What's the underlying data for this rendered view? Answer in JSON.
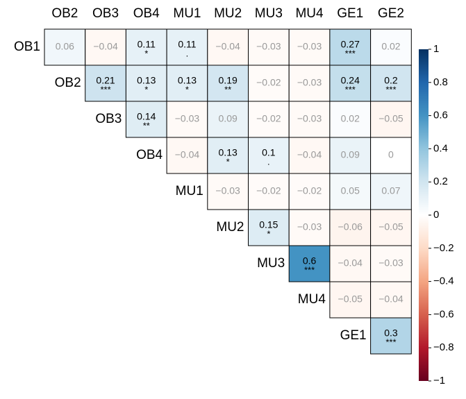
{
  "chart_data": {
    "type": "heatmap",
    "columns": [
      "OB2",
      "OB3",
      "OB4",
      "MU1",
      "MU2",
      "MU3",
      "MU4",
      "GE1",
      "GE2"
    ],
    "rows": [
      "OB1",
      "OB2",
      "OB3",
      "OB4",
      "MU1",
      "MU2",
      "MU3",
      "MU4",
      "GE1"
    ],
    "values": [
      [
        0.06,
        -0.04,
        0.11,
        0.11,
        -0.04,
        -0.03,
        -0.03,
        0.27,
        0.02
      ],
      [
        null,
        0.21,
        0.13,
        0.13,
        0.19,
        -0.02,
        -0.03,
        0.24,
        0.2
      ],
      [
        null,
        null,
        0.14,
        -0.03,
        0.09,
        -0.02,
        -0.03,
        0.02,
        -0.05
      ],
      [
        null,
        null,
        null,
        -0.04,
        0.13,
        0.1,
        -0.04,
        0.09,
        0
      ],
      [
        null,
        null,
        null,
        null,
        -0.03,
        -0.02,
        -0.02,
        0.05,
        0.07
      ],
      [
        null,
        null,
        null,
        null,
        null,
        0.15,
        -0.03,
        -0.06,
        -0.05
      ],
      [
        null,
        null,
        null,
        null,
        null,
        null,
        0.6,
        -0.04,
        -0.03
      ],
      [
        null,
        null,
        null,
        null,
        null,
        null,
        null,
        -0.05,
        -0.04
      ],
      [
        null,
        null,
        null,
        null,
        null,
        null,
        null,
        null,
        0.3
      ]
    ],
    "value_labels": [
      [
        "0.06",
        "−0.04",
        "0.11",
        "0.11",
        "−0.04",
        "−0.03",
        "−0.03",
        "0.27",
        "0.02"
      ],
      [
        null,
        "0.21",
        "0.13",
        "0.13",
        "0.19",
        "−0.02",
        "−0.03",
        "0.24",
        "0.2"
      ],
      [
        null,
        null,
        "0.14",
        "−0.03",
        "0.09",
        "−0.02",
        "−0.03",
        "0.02",
        "−0.05"
      ],
      [
        null,
        null,
        null,
        "−0.04",
        "0.13",
        "0.1",
        "−0.04",
        "0.09",
        "0"
      ],
      [
        null,
        null,
        null,
        null,
        "−0.03",
        "−0.02",
        "−0.02",
        "0.05",
        "0.07"
      ],
      [
        null,
        null,
        null,
        null,
        null,
        "0.15",
        "−0.03",
        "−0.06",
        "−0.05"
      ],
      [
        null,
        null,
        null,
        null,
        null,
        null,
        "0.6",
        "−0.04",
        "−0.03"
      ],
      [
        null,
        null,
        null,
        null,
        null,
        null,
        null,
        "−0.05",
        "−0.04"
      ],
      [
        null,
        null,
        null,
        null,
        null,
        null,
        null,
        null,
        "0.3"
      ]
    ],
    "significance": [
      [
        null,
        null,
        "*",
        ".",
        null,
        null,
        null,
        "***",
        null
      ],
      [
        null,
        "***",
        "*",
        "*",
        "**",
        null,
        null,
        "***",
        "***"
      ],
      [
        null,
        null,
        "**",
        null,
        null,
        null,
        null,
        null,
        null
      ],
      [
        null,
        null,
        null,
        null,
        "*",
        ".",
        null,
        null,
        null
      ],
      [
        null,
        null,
        null,
        null,
        null,
        null,
        null,
        null,
        null
      ],
      [
        null,
        null,
        null,
        null,
        null,
        "*",
        null,
        null,
        null
      ],
      [
        null,
        null,
        null,
        null,
        null,
        null,
        "***",
        null,
        null
      ],
      [
        null,
        null,
        null,
        null,
        null,
        null,
        null,
        null,
        null
      ],
      [
        null,
        null,
        null,
        null,
        null,
        null,
        null,
        null,
        "***"
      ]
    ],
    "zlim": [
      -1,
      1
    ],
    "zticks": [
      1,
      0.8,
      0.6,
      0.4,
      0.2,
      0,
      {
        "value": -0.2,
        "label": "−0.2"
      },
      {
        "value": -0.4,
        "label": "−0.4"
      },
      {
        "value": -0.6,
        "label": "−0.6"
      },
      {
        "value": -0.8,
        "label": "−0.8"
      },
      {
        "value": -1,
        "label": "−1"
      }
    ],
    "colors": [
      "#67001f",
      "#b2182b",
      "#d6604d",
      "#f4a582",
      "#fddbc7",
      "#ffffff",
      "#d1e5f0",
      "#92c5de",
      "#4393c3",
      "#2166ac",
      "#053061"
    ]
  }
}
